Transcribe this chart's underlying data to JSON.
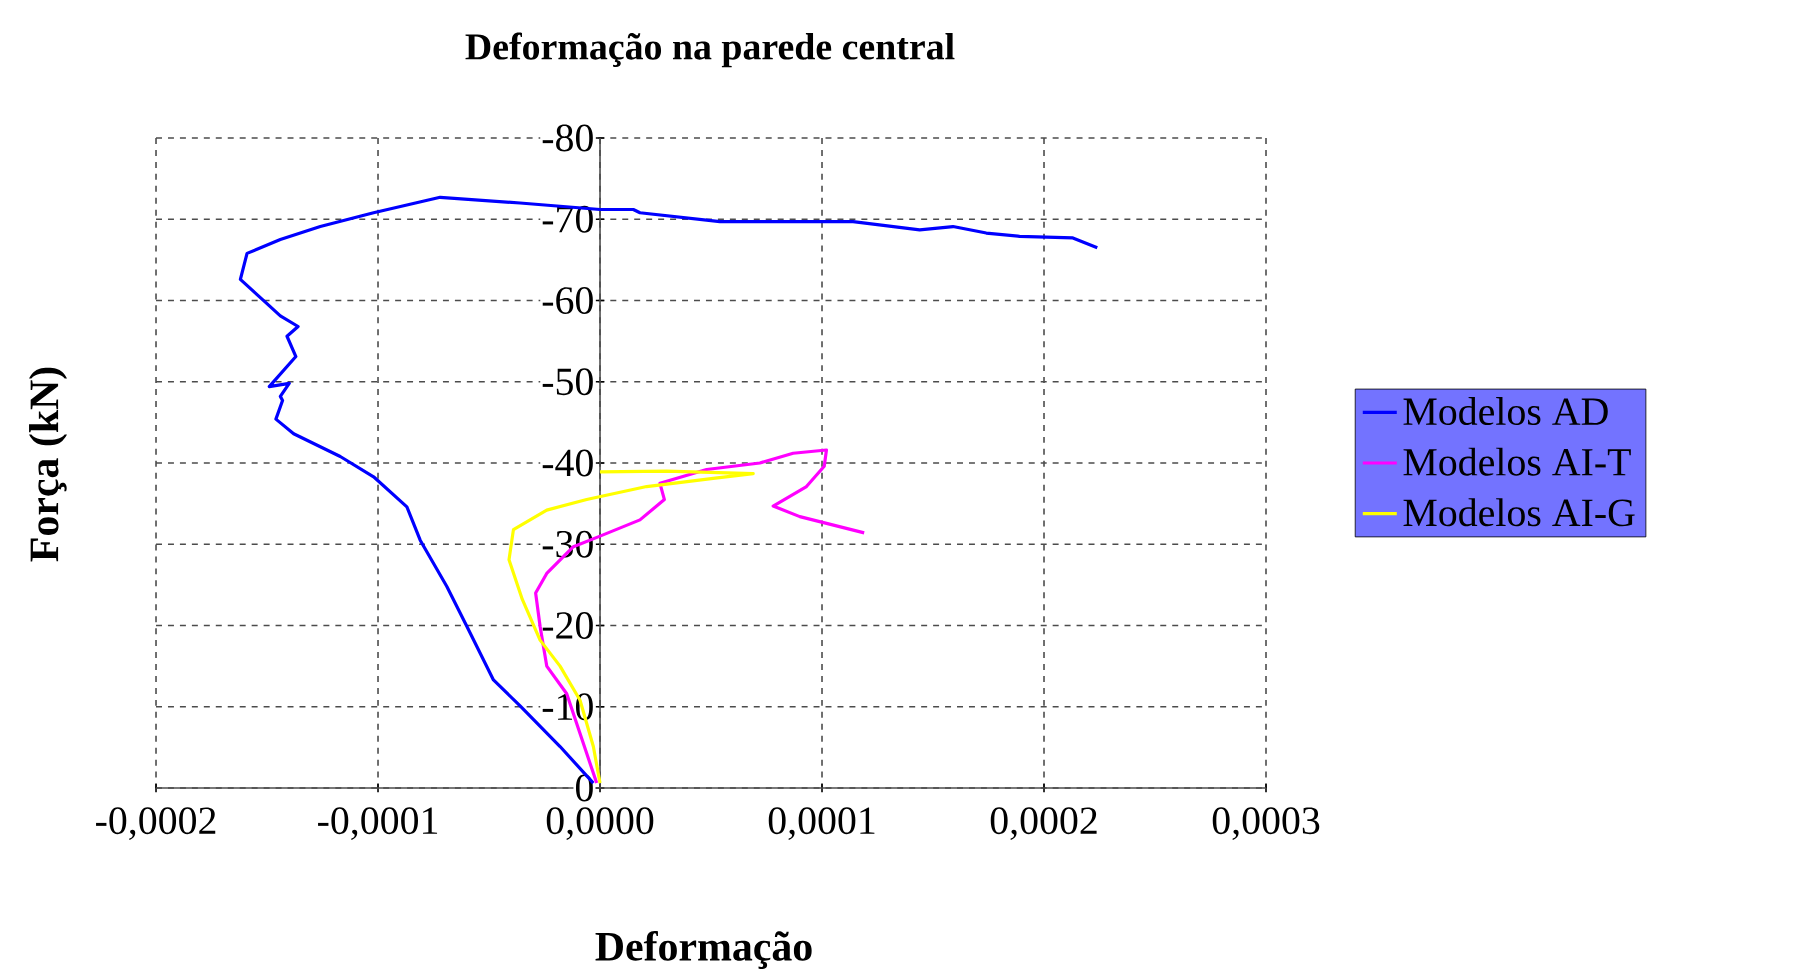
{
  "chart_data": {
    "type": "line",
    "title": "Deformação na parede central",
    "xlabel": "Deformação",
    "ylabel": "Força (kN)",
    "xlim": [
      -0.0002,
      0.0003
    ],
    "ylim": [
      0,
      -80
    ],
    "xticks": [
      {
        "value": -0.0002,
        "label": "-0,0002"
      },
      {
        "value": -0.0001,
        "label": "-0,0001"
      },
      {
        "value": 0,
        "label": "0,0000"
      },
      {
        "value": 0.0001,
        "label": "0,0001"
      },
      {
        "value": 0.0002,
        "label": "0,0002"
      },
      {
        "value": 0.0003,
        "label": "0,0003"
      }
    ],
    "yticks": [
      0,
      -10,
      -20,
      -30,
      -40,
      -50,
      -60,
      -70,
      -80
    ],
    "grid": true,
    "legend": "right",
    "series": [
      {
        "name": "Modelos AD",
        "color": "#0000ff",
        "x": [
          -3e-06,
          -1.8e-05,
          -3.6e-05,
          -4.8e-05,
          -6e-05,
          -6.9e-05,
          -8.1e-05,
          -8.7e-05,
          -0.000102,
          -0.000117,
          -0.000138,
          -0.000146,
          -0.000143,
          -0.000144,
          -0.00014,
          -0.000149,
          -0.000137,
          -0.000141,
          -0.000136,
          -0.000144,
          -0.000152,
          -0.000162,
          -0.000159,
          -0.000144,
          -0.000126,
          -0.000102,
          -7.2e-05,
          -3.6e-05,
          0.0,
          1.5e-05,
          1.8e-05,
          5.4e-05,
          9.9e-05,
          0.000114,
          0.000144,
          0.000159,
          0.000174,
          0.000189,
          0.000213,
          0.000224
        ],
        "values": [
          -0.6,
          -5.1,
          -10.1,
          -13.3,
          -19.9,
          -24.8,
          -30.5,
          -34.6,
          -38.3,
          -40.8,
          -43.6,
          -45.4,
          -47.7,
          -48.2,
          -49.8,
          -49.4,
          -53.1,
          -55.6,
          -56.8,
          -58.1,
          -60.1,
          -62.6,
          -65.8,
          -67.5,
          -69.1,
          -70.8,
          -72.7,
          -72.0,
          -71.2,
          -71.2,
          -70.8,
          -69.7,
          -69.7,
          -69.7,
          -68.7,
          -69.1,
          -68.3,
          -67.9,
          -67.7,
          -66.5
        ]
      },
      {
        "name": "Modelos AI-T",
        "color": "#ff00ff",
        "x": [
          -1.5e-06,
          -9e-06,
          -1.5e-05,
          -2.4e-05,
          -2.7e-05,
          -2.9e-05,
          -2.4e-05,
          -1.2e-05,
          0.0,
          1.8e-05,
          2.9e-05,
          2.7e-05,
          4.8e-05,
          7.2e-05,
          8.7e-05,
          0.000102,
          0.000101,
          9.3e-05,
          7.8e-05,
          9e-05,
          0.000119
        ],
        "values": [
          -0.6,
          -6.7,
          -11.6,
          -15.0,
          -19.9,
          -24.0,
          -26.4,
          -29.7,
          -31.0,
          -33.0,
          -35.5,
          -37.5,
          -39.2,
          -40.0,
          -41.2,
          -41.6,
          -39.6,
          -37.1,
          -34.7,
          -33.4,
          -31.4
        ]
      },
      {
        "name": "Modelos AI-G",
        "color": "#ffff00",
        "x": [
          0.0,
          -3e-06,
          -9e-06,
          -1.8e-05,
          -2.7e-05,
          -3.5e-05,
          -4.1e-05,
          -3.9e-05,
          -2.4e-05,
          -6e-06,
          2.1e-05,
          5.1e-05,
          6.9e-05,
          3e-05,
          0.0
        ],
        "values": [
          -0.6,
          -5.1,
          -10.8,
          -15.0,
          -18.2,
          -23.2,
          -28.1,
          -31.8,
          -34.2,
          -35.5,
          -37.1,
          -38.1,
          -38.7,
          -39.0,
          -38.9
        ]
      }
    ]
  }
}
